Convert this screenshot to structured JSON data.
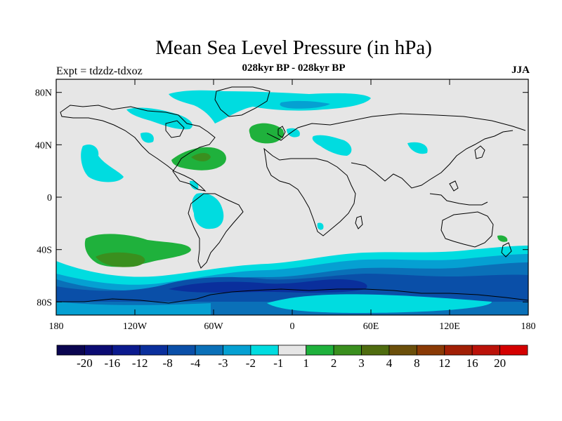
{
  "header": {
    "title": "Mean Sea Level Pressure (in hPa)",
    "subtitle": "028kyr BP - 028kyr BP",
    "expt_label": "Expt = tdzdz-tdxoz",
    "season": "JJA"
  },
  "axes": {
    "lat_ticks": [
      "80N",
      "40N",
      "0",
      "40S",
      "80S"
    ],
    "lon_ticks": [
      "180",
      "120W",
      "60W",
      "0",
      "60E",
      "120E",
      "180"
    ]
  },
  "colorbar": {
    "labels": [
      "-20",
      "-16",
      "-12",
      "-8",
      "-4",
      "-3",
      "-2",
      "-1",
      "1",
      "2",
      "3",
      "4",
      "8",
      "12",
      "16",
      "20"
    ],
    "colors": [
      "#0a0550",
      "#0b0b73",
      "#0b1a8e",
      "#0a2f9c",
      "#0a4fa8",
      "#0a70b8",
      "#05a0d2",
      "#00dce0",
      "#e6e6e6",
      "#1fb13c",
      "#3a8f1e",
      "#4f6c0f",
      "#6b4f0a",
      "#8a3a05",
      "#a11f05",
      "#bb1209",
      "#d40000"
    ]
  },
  "map": {
    "projection": "cylindrical-equidistant",
    "lon_range": [
      -180,
      180
    ],
    "lat_range": [
      -90,
      90
    ],
    "background_color": "#e6e6e6",
    "anomaly_regions": [
      {
        "name": "north-pacific-neg",
        "value_class": "-1",
        "color": "#00dce0"
      },
      {
        "name": "greenland-arctic-neg",
        "value_class": "-1",
        "color": "#00dce0"
      },
      {
        "name": "north-atlantic-pos",
        "value_class": "1",
        "color": "#1fb13c"
      },
      {
        "name": "gulf-stream-pos",
        "value_class": "2",
        "color": "#3a8f1e"
      },
      {
        "name": "south-pacific-pos",
        "value_class": "2",
        "color": "#3a8f1e"
      },
      {
        "name": "southern-ocean-neg",
        "value_class": "-4",
        "color": "#0a4fa8"
      }
    ]
  }
}
